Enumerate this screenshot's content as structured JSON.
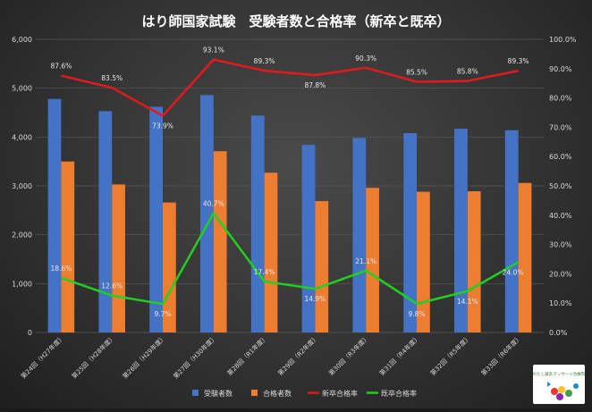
{
  "chart_data": {
    "type": "bar",
    "title": "はり師国家試験　受験者数と合格率（新卒と既卒）",
    "categories": [
      "第24回（H27年度）",
      "第25回（H28年度）",
      "第26回（H29年度）",
      "第27回（H30年度）",
      "第28回（R1年度）",
      "第29回（R2年度）",
      "第30回（R3年度）",
      "第31回（R4年度）",
      "第32回（R5年度）",
      "第33回（R6年度）"
    ],
    "y_left": {
      "lim": [
        0,
        6000
      ],
      "ticks": [
        "0",
        "1,000",
        "2,000",
        "3,000",
        "4,000",
        "5,000",
        "6,000"
      ]
    },
    "y_right": {
      "lim": [
        0,
        100
      ],
      "ticks": [
        "0.0%",
        "10.0%",
        "20.0%",
        "30.0%",
        "40.0%",
        "50.0%",
        "60.0%",
        "70.0%",
        "80.0%",
        "90.0%",
        "100.0%"
      ]
    },
    "series": [
      {
        "name": "受験者数",
        "kind": "bar",
        "axis": "left",
        "color": "#4472c4",
        "values": [
          4780,
          4530,
          4620,
          4860,
          4440,
          3840,
          3980,
          4080,
          4170,
          4140
        ]
      },
      {
        "name": "合格者数",
        "kind": "bar",
        "axis": "left",
        "color": "#ed7d31",
        "values": [
          3500,
          3030,
          2660,
          3710,
          3270,
          2690,
          2960,
          2880,
          2890,
          3060
        ]
      },
      {
        "name": "新卒合格率",
        "kind": "line",
        "axis": "right",
        "color": "#e31a1c",
        "values": [
          87.6,
          83.5,
          73.9,
          93.1,
          89.3,
          87.8,
          90.3,
          85.5,
          85.8,
          89.3
        ],
        "labels": [
          "87.6%",
          "83.5%",
          "73.9%",
          "93.1%",
          "89.3%",
          "87.8%",
          "90.3%",
          "85.5%",
          "85.8%",
          "89.3%"
        ]
      },
      {
        "name": "既卒合格率",
        "kind": "line",
        "axis": "right",
        "color": "#1fd11f",
        "values": [
          18.6,
          12.6,
          9.7,
          40.7,
          17.4,
          14.9,
          21.1,
          9.8,
          14.1,
          24.0
        ],
        "labels": [
          "18.6%",
          "12.6%",
          "9.7%",
          "40.7%",
          "17.4%",
          "14.9%",
          "21.1%",
          "9.8%",
          "14.1%",
          "24.0%"
        ]
      }
    ],
    "grid": true,
    "legend": "bottom"
  },
  "logo": {
    "text": "わたし鍼灸マッサージ治療院"
  }
}
